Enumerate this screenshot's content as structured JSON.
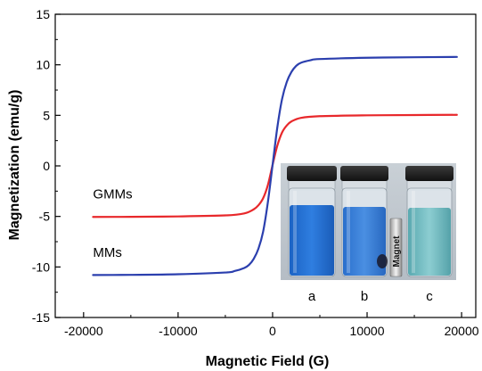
{
  "chart_data": {
    "type": "line",
    "title": "",
    "xlabel": "Magnetic Field (G)",
    "ylabel": "Magnetization (emu/g)",
    "xlim": [
      -23000,
      21500
    ],
    "ylim": [
      -15,
      15
    ],
    "xticks": [
      -20000,
      -10000,
      0,
      10000,
      20000
    ],
    "xtick_labels": [
      "-20000",
      "-10000",
      "0",
      "10000",
      "20000"
    ],
    "yticks": [
      -15,
      -10,
      -5,
      0,
      5,
      10,
      15
    ],
    "ytick_labels": [
      "-15",
      "-10",
      "-5",
      "0",
      "5",
      "10",
      "15"
    ],
    "grid": false,
    "legend": "none",
    "series": [
      {
        "color": "#e8282b",
        "x": [
          -19000,
          -15000,
          -10000,
          -5000,
          -3000,
          -2000,
          -1500,
          -1000,
          -500,
          0,
          500,
          1000,
          1500,
          2000,
          3000,
          5000,
          10000,
          15000,
          19500
        ],
        "y": [
          -5.05,
          -5.04,
          -5.0,
          -4.9,
          -4.7,
          -4.3,
          -3.9,
          -3.2,
          -1.9,
          0.1,
          2.0,
          3.3,
          4.0,
          4.4,
          4.75,
          4.92,
          5.0,
          5.03,
          5.05
        ]
      },
      {
        "color": "#2b3fae",
        "x": [
          -19000,
          -15000,
          -10000,
          -5000,
          -4000,
          -3000,
          -2500,
          -2000,
          -1500,
          -1000,
          -500,
          0,
          500,
          1000,
          1500,
          2000,
          2500,
          3000,
          4000,
          5000,
          10000,
          15000,
          19500
        ],
        "y": [
          -10.8,
          -10.78,
          -10.72,
          -10.55,
          -10.4,
          -10.1,
          -9.8,
          -9.2,
          -8.2,
          -6.5,
          -3.6,
          0.1,
          3.8,
          6.6,
          8.3,
          9.3,
          9.9,
          10.2,
          10.45,
          10.57,
          10.7,
          10.75,
          10.78
        ]
      }
    ],
    "annotations": [
      {
        "text": "GMMs",
        "x": -19000,
        "y": -3.2
      },
      {
        "text": "MMs",
        "x": -19000,
        "y": -9.0
      }
    ],
    "inset": {
      "labels": [
        "a",
        "b",
        "c"
      ],
      "magnet_label": "Magnet"
    }
  }
}
